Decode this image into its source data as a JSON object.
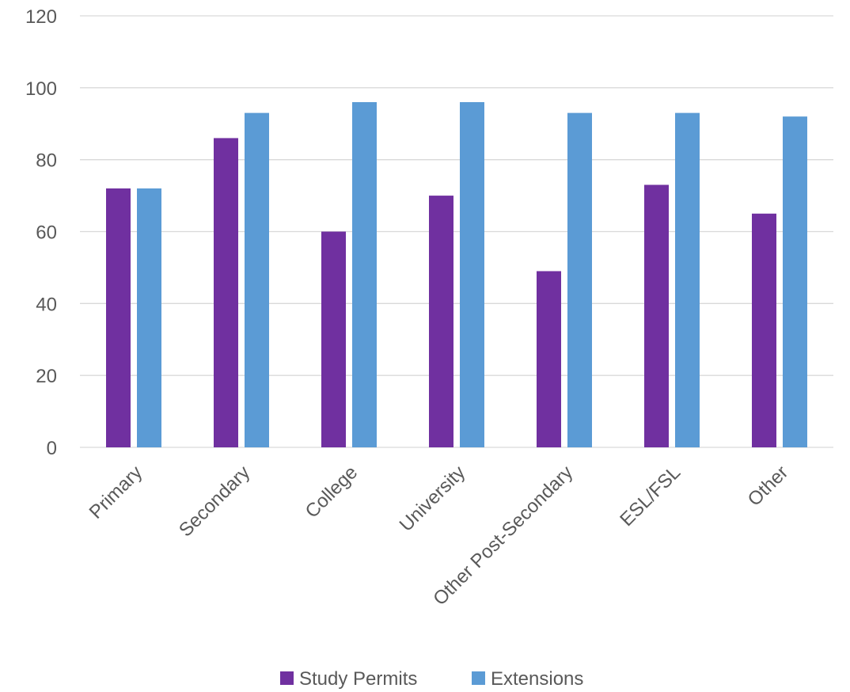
{
  "chart_data": {
    "type": "bar",
    "categories": [
      "Primary",
      "Secondary",
      "College",
      "University",
      "Other Post-Secondary",
      "ESL/FSL",
      "Other"
    ],
    "series": [
      {
        "name": "Study Permits",
        "color": "#7030a0",
        "values": [
          72,
          86,
          60,
          70,
          49,
          73,
          65
        ]
      },
      {
        "name": "Extensions",
        "color": "#5b9bd5",
        "values": [
          72,
          93,
          96,
          96,
          93,
          93,
          92
        ]
      }
    ],
    "ylim": [
      0,
      120
    ],
    "yticks": [
      0,
      20,
      40,
      60,
      80,
      100,
      120
    ],
    "grid": true,
    "legend_position": "bottom",
    "title": "",
    "xlabel": "",
    "ylabel": ""
  }
}
